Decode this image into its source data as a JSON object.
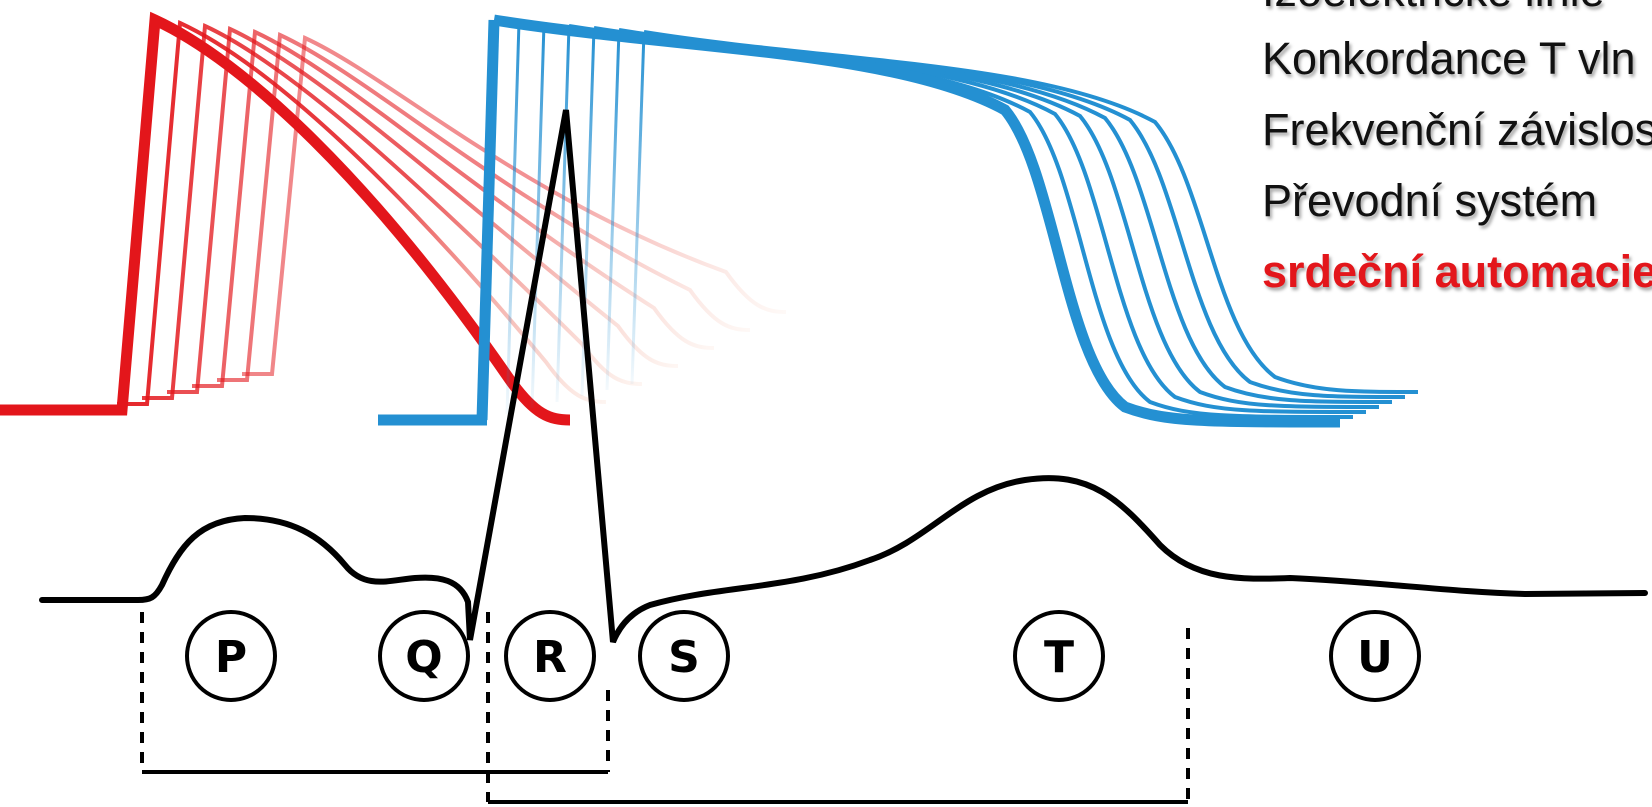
{
  "side_text": {
    "lines": [
      "Izoelektrické linie",
      "Konkordance T vln",
      "Frekvenční závislost",
      "Převodní systém",
      "srdeční automacie"
    ],
    "highlight_index": 4
  },
  "ecg": {
    "waves": [
      "P",
      "Q",
      "R",
      "S",
      "T",
      "U"
    ]
  },
  "colors": {
    "atrial_action_potential": "#e3161b",
    "ventricular_action_potential": "#2490d2",
    "ecg_trace": "#000000",
    "highlight_text": "#e3161b"
  }
}
